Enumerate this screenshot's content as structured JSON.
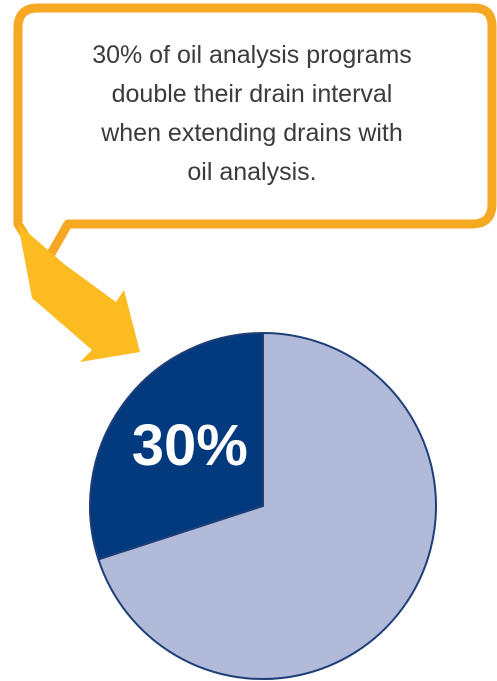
{
  "callout": {
    "lines": [
      "30% of oil analysis programs",
      "double their drain interval",
      "when extending drains with",
      "oil analysis."
    ],
    "border_color": "#f7a823",
    "arrow_color": "#fbbb21"
  },
  "chart_data": {
    "type": "pie",
    "slices": [
      {
        "value": 30,
        "label": "30%",
        "color": "#033a7e"
      },
      {
        "value": 70,
        "label": "",
        "color": "#b2bad9"
      }
    ],
    "outline_color": "#1e3f77"
  }
}
